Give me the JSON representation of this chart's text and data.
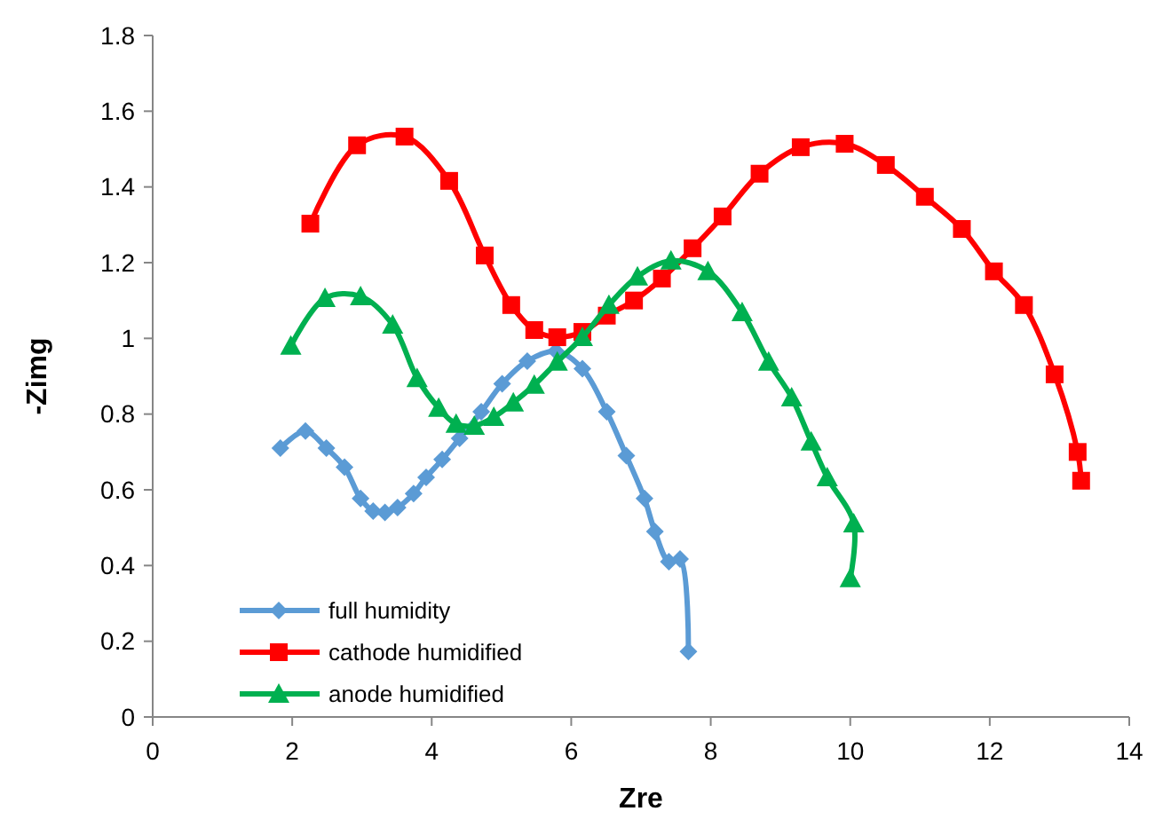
{
  "chart_data": {
    "type": "line",
    "xlabel": "Zre",
    "ylabel": "-Zimg",
    "xlim": [
      0,
      14
    ],
    "xticks": [
      0,
      2,
      4,
      6,
      8,
      10,
      12,
      14
    ],
    "ylim": [
      0,
      1.8
    ],
    "yticks": [
      0,
      0.2,
      0.4,
      0.6,
      0.8,
      1,
      1.2,
      1.4,
      1.6,
      1.8
    ],
    "grid": false,
    "legend": "bottom left",
    "line_style": "solid",
    "series": [
      {
        "name": "full humidity",
        "color": "#5b9bd5",
        "marker": "diamond",
        "x": [
          1.83,
          2.19,
          2.49,
          2.75,
          2.98,
          3.16,
          3.33,
          3.51,
          3.74,
          3.92,
          4.15,
          4.4,
          4.71,
          5.01,
          5.37,
          5.78,
          6.16,
          6.51,
          6.79,
          7.05,
          7.2,
          7.4,
          7.56,
          7.68
        ],
        "values": [
          0.71,
          0.755,
          0.71,
          0.66,
          0.577,
          0.544,
          0.54,
          0.553,
          0.59,
          0.633,
          0.68,
          0.736,
          0.806,
          0.88,
          0.94,
          0.966,
          0.92,
          0.806,
          0.69,
          0.577,
          0.49,
          0.41,
          0.417,
          0.173
        ]
      },
      {
        "name": "cathode humidified",
        "color": "#ff0000",
        "marker": "square",
        "x": [
          2.26,
          2.93,
          3.61,
          4.25,
          4.76,
          5.14,
          5.47,
          5.8,
          6.16,
          6.51,
          6.9,
          7.3,
          7.74,
          8.17,
          8.7,
          9.29,
          9.92,
          10.51,
          11.07,
          11.6,
          12.06,
          12.49,
          12.93,
          13.26,
          13.31
        ],
        "values": [
          1.303,
          1.51,
          1.533,
          1.416,
          1.219,
          1.088,
          1.022,
          1.003,
          1.017,
          1.06,
          1.1,
          1.158,
          1.238,
          1.322,
          1.435,
          1.505,
          1.514,
          1.458,
          1.374,
          1.289,
          1.177,
          1.088,
          0.905,
          0.7,
          0.624
        ]
      },
      {
        "name": "anode humidified",
        "color": "#00b050",
        "marker": "triangle",
        "x": [
          1.98,
          2.47,
          2.98,
          3.44,
          3.79,
          4.1,
          4.35,
          4.61,
          4.89,
          5.17,
          5.47,
          5.8,
          6.16,
          6.54,
          6.95,
          7.43,
          7.96,
          8.45,
          8.83,
          9.16,
          9.44,
          9.67,
          10.05,
          10.0
        ],
        "values": [
          0.98,
          1.106,
          1.111,
          1.036,
          0.895,
          0.816,
          0.774,
          0.769,
          0.792,
          0.83,
          0.877,
          0.938,
          1.003,
          1.088,
          1.163,
          1.205,
          1.177,
          1.069,
          0.938,
          0.844,
          0.727,
          0.633,
          0.511,
          0.366
        ]
      }
    ]
  }
}
